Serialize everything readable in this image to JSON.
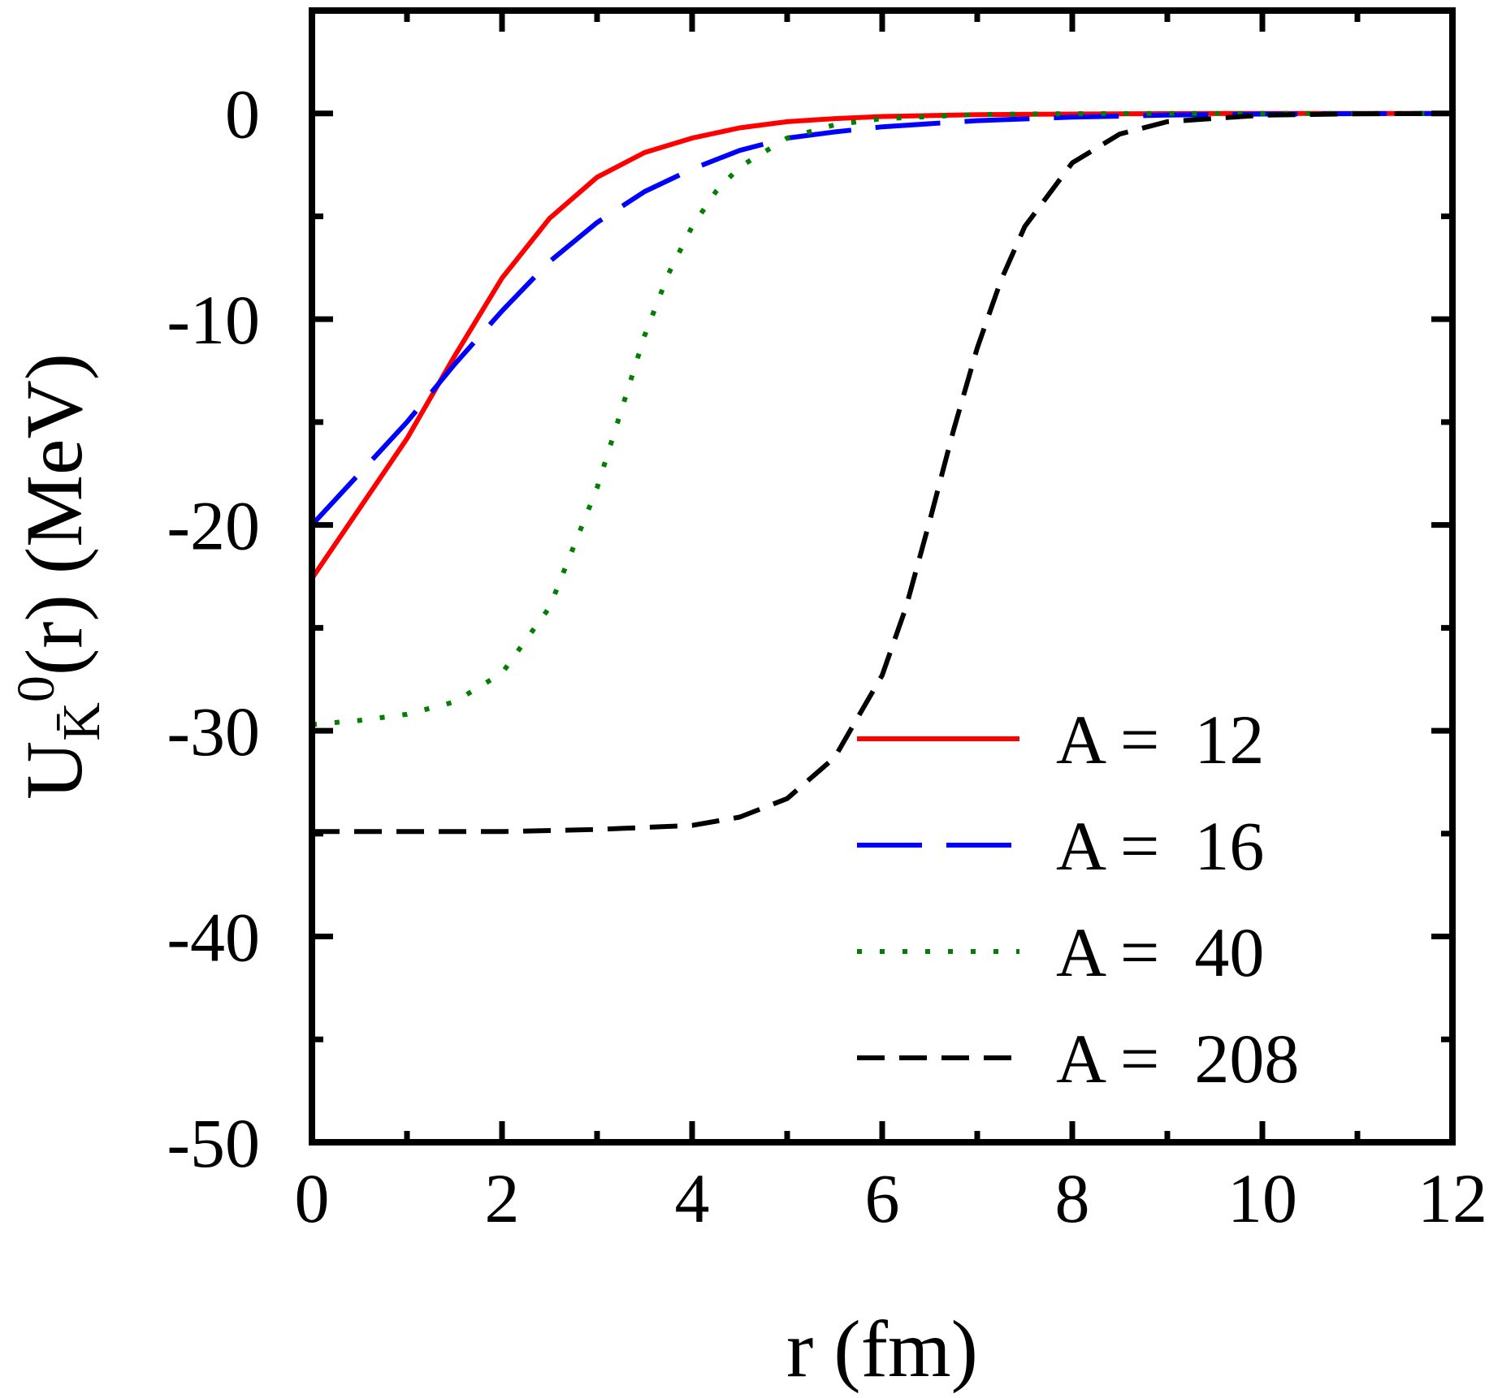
{
  "chart_data": {
    "type": "line",
    "xlabel": "r (fm)",
    "ylabel": {
      "main": "U",
      "subscript": "K̄",
      "superscript": "0",
      "suffix": "(r) (MeV)"
    },
    "xlim": [
      0,
      12
    ],
    "ylim": [
      -50,
      5
    ],
    "x_ticks": [
      0,
      2,
      4,
      6,
      8,
      10,
      12
    ],
    "x_tick_labels": [
      "0",
      "2",
      "4",
      "6",
      "8",
      "10",
      "12"
    ],
    "y_ticks": [
      0,
      -10,
      -20,
      -30,
      -40,
      -50
    ],
    "y_tick_labels": [
      "0",
      "-10",
      "-20",
      "-30",
      "-40",
      "-50"
    ],
    "grid": false,
    "legend_position": "bottom-right",
    "series": [
      {
        "name": "A =  12",
        "color": "#ff0000",
        "style": "solid",
        "x": [
          0,
          0.5,
          1,
          1.5,
          2,
          2.5,
          3,
          3.5,
          4,
          4.5,
          5,
          5.5,
          6,
          7,
          8,
          9,
          10,
          11,
          12
        ],
        "y": [
          -22.6,
          -19.2,
          -15.8,
          -11.8,
          -8.0,
          -5.1,
          -3.1,
          -1.9,
          -1.2,
          -0.7,
          -0.4,
          -0.25,
          -0.15,
          -0.06,
          -0.03,
          -0.01,
          0,
          0,
          0
        ]
      },
      {
        "name": "A =  16",
        "color": "#0000ff",
        "style": "dashed",
        "x": [
          0,
          0.5,
          1,
          1.5,
          2,
          2.5,
          3,
          3.5,
          4,
          4.5,
          5,
          5.5,
          6,
          7,
          8,
          9,
          10,
          11,
          12
        ],
        "y": [
          -20.0,
          -17.5,
          -15.0,
          -12.2,
          -9.6,
          -7.2,
          -5.3,
          -3.8,
          -2.7,
          -1.8,
          -1.2,
          -0.9,
          -0.65,
          -0.35,
          -0.18,
          -0.08,
          -0.03,
          -0.01,
          0
        ]
      },
      {
        "name": "A =  40",
        "color": "#007f00",
        "style": "dotted",
        "x": [
          0,
          0.5,
          1,
          1.5,
          2,
          2.5,
          3,
          3.25,
          3.5,
          3.75,
          4,
          4.25,
          4.5,
          5,
          5.5,
          6,
          7,
          8,
          9,
          10,
          11,
          12
        ],
        "y": [
          -29.7,
          -29.5,
          -29.2,
          -28.6,
          -27.2,
          -24.0,
          -18.2,
          -14.5,
          -10.8,
          -7.8,
          -5.5,
          -3.8,
          -2.6,
          -1.2,
          -0.55,
          -0.25,
          -0.05,
          -0.01,
          0,
          0,
          0,
          0
        ]
      },
      {
        "name": "A =  208",
        "color": "#000000",
        "style": "longdash",
        "x": [
          0,
          1,
          2,
          3,
          4,
          4.5,
          5,
          5.5,
          6,
          6.25,
          6.5,
          6.75,
          7,
          7.25,
          7.5,
          8,
          8.5,
          9,
          10,
          11,
          12
        ],
        "y": [
          -34.9,
          -34.9,
          -34.9,
          -34.8,
          -34.6,
          -34.2,
          -33.3,
          -31.3,
          -27.3,
          -24.0,
          -19.8,
          -15.4,
          -11.4,
          -8.1,
          -5.5,
          -2.4,
          -1.0,
          -0.4,
          -0.08,
          -0.02,
          0
        ]
      }
    ]
  }
}
